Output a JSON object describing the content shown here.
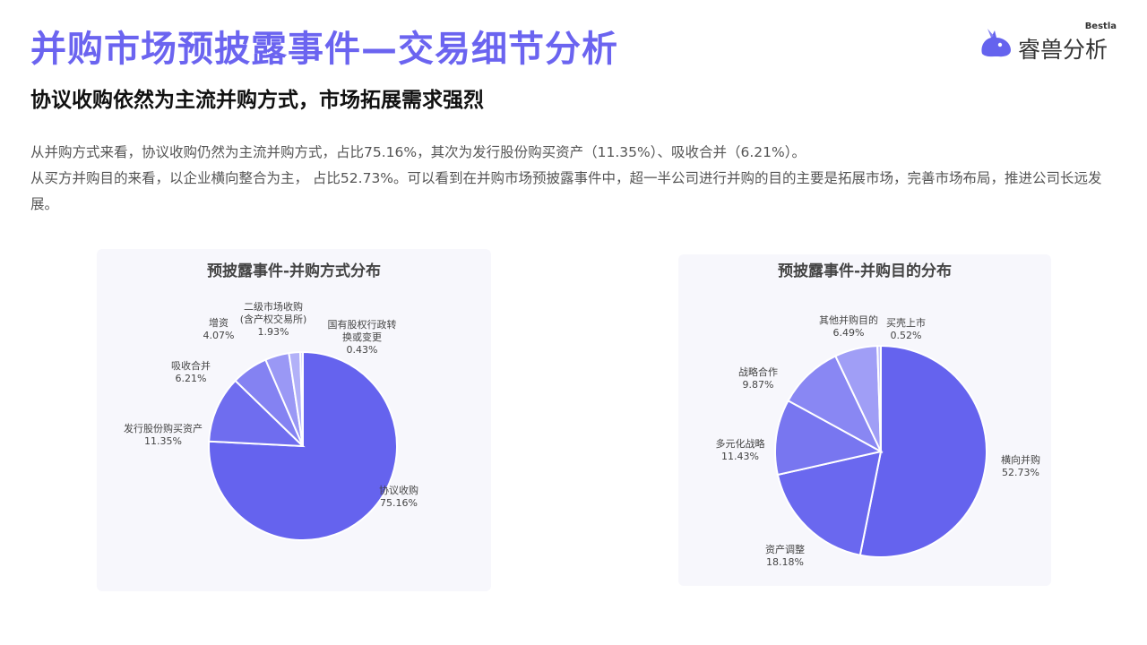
{
  "header": {
    "title": "并购市场预披露事件—交易细节分析",
    "subtitle": "协议收购依然为主流并购方式，市场拓展需求强烈"
  },
  "logo": {
    "en": "Bestla",
    "cn": "睿兽分析"
  },
  "body": {
    "para1": "从并购方式来看，协议收购仍然为主流并购方式，占比75.16%，其次为发行股份购买资产（11.35%）、吸收合并（6.21%）。",
    "para2": "从买方并购目的来看，以企业横向整合为主， 占比52.73%。可以看到在并购市场预披露事件中，超一半公司进行并购的目的主要是拓展市场，完善市场布局，推进公司长远发展。"
  },
  "colors": {
    "title": "#6B64F0",
    "primary": "#6563EE",
    "card_bg": "#F7F7FC"
  },
  "chart_data": [
    {
      "type": "pie",
      "title": "预披露事件-并购方式分布",
      "slices": [
        {
          "label": "协议收购",
          "value": 75.16,
          "pct": "75.16%",
          "color": "#6563EE"
        },
        {
          "label": "发行股份购买资产",
          "value": 11.35,
          "pct": "11.35%",
          "color": "#6F6DEF"
        },
        {
          "label": "吸收合并",
          "value": 6.21,
          "pct": "6.21%",
          "color": "#8482F2"
        },
        {
          "label": "增资",
          "value": 4.07,
          "pct": "4.07%",
          "color": "#9A98F5"
        },
        {
          "label": "二级市场收购\n(含产权交易所)",
          "value": 1.93,
          "pct": "1.93%",
          "color": "#B2B1F8"
        },
        {
          "label": "国有股权行政转\n换或变更",
          "value": 0.43,
          "pct": "0.43%",
          "color": "#CBCAFA"
        }
      ]
    },
    {
      "type": "pie",
      "title": "预披露事件-并购目的分布",
      "slices": [
        {
          "label": "横向并购",
          "value": 52.73,
          "pct": "52.73%",
          "color": "#6563EE"
        },
        {
          "label": "资产调整",
          "value": 18.18,
          "pct": "18.18%",
          "color": "#6A68EF"
        },
        {
          "label": "多元化战略",
          "value": 11.43,
          "pct": "11.43%",
          "color": "#7876F0"
        },
        {
          "label": "战略合作",
          "value": 9.87,
          "pct": "9.87%",
          "color": "#8987F3"
        },
        {
          "label": "其他并购目的",
          "value": 6.49,
          "pct": "6.49%",
          "color": "#A09EF6"
        },
        {
          "label": "买壳上市",
          "value": 0.52,
          "pct": "0.52%",
          "color": "#C6C5FA"
        }
      ]
    }
  ]
}
